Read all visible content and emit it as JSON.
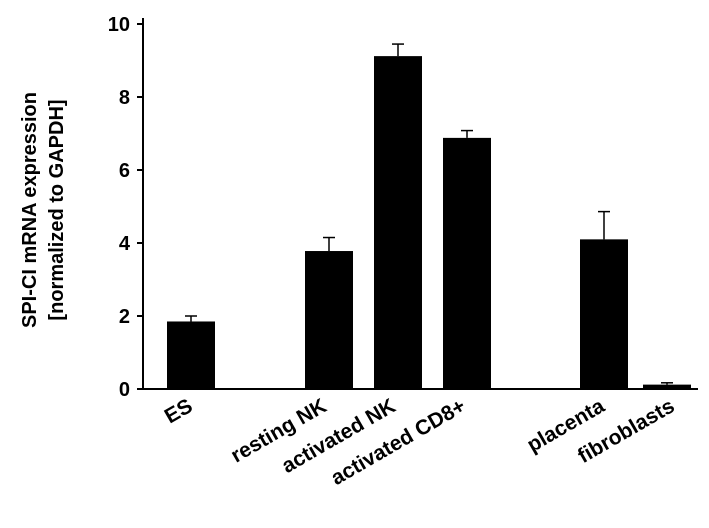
{
  "chart_data": {
    "type": "bar",
    "ylabel_line1": "SPI-CI mRNA expression",
    "ylabel_line2": "[normalized to GAPDH]",
    "ylim": [
      0,
      10
    ],
    "yticks": [
      "0",
      "2",
      "4",
      "6",
      "8",
      "10"
    ],
    "grid": false,
    "bar_color": "#000000",
    "bars": [
      {
        "category": "ES",
        "value": 1.85,
        "error": 0.15
      },
      {
        "category": "resting NK",
        "value": 3.78,
        "error": 0.37
      },
      {
        "category": "activated NK",
        "value": 9.12,
        "error": 0.33
      },
      {
        "category": "activated CD8+",
        "value": 6.88,
        "error": 0.2
      },
      {
        "category": "placenta",
        "value": 4.1,
        "error": 0.76
      },
      {
        "category": "fibroblasts",
        "value": 0.12,
        "error": 0.05
      }
    ]
  }
}
